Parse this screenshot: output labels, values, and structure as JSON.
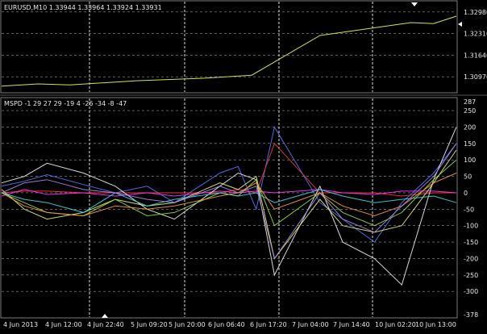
{
  "colors": {
    "background": "#000000",
    "grid": "#d8d8d8",
    "text": "#e8e8e8",
    "price_line": "#c8e84a",
    "separator": "#8a8a8a"
  },
  "upper_panel": {
    "header": "EURUSD,M10  1.33944 1.33964 1.33924 1.33931",
    "price_labels": [
      "1.32980",
      "1.32310",
      "1.31640",
      "1.30970"
    ],
    "current_price_label": "1.32980"
  },
  "lower_panel": {
    "header": "MSPD -1 29 27 29 -19 4 -26 -34 -8 -47",
    "y_labels": [
      "287",
      "250",
      "200",
      "150",
      "100",
      "50",
      "0",
      "-50",
      "-100",
      "-150",
      "-200",
      "-250",
      "-300",
      "-378"
    ]
  },
  "time_axis": {
    "labels": [
      "4 Jun 2013",
      "4 Jun 12:00",
      "4 Jun 22:40",
      "5 Jun 09:20",
      "5 Jun 20:00",
      "6 Jun 06:40",
      "6 Jun 17:20",
      "7 Jun 04:00",
      "7 Jun 14:40",
      "10 Jun 02:20",
      "10 Jun 13:00"
    ]
  },
  "chart_data": [
    {
      "type": "line",
      "title": "EURUSD,M10",
      "ylim": [
        1.305,
        1.333
      ],
      "y_ticks": [
        1.3298,
        1.3231,
        1.3164,
        1.3097
      ],
      "series": [
        {
          "name": "EURUSD",
          "color": "#c8e84a",
          "x": [
            0,
            8,
            15,
            30,
            45,
            55,
            70,
            80,
            90,
            95,
            100
          ],
          "values": [
            1.3068,
            1.3075,
            1.3072,
            1.3085,
            1.3093,
            1.3102,
            1.3225,
            1.3245,
            1.3265,
            1.3262,
            1.3285
          ]
        }
      ]
    },
    {
      "type": "line",
      "title": "MSPD",
      "ylim": [
        -378,
        287
      ],
      "y_ticks": [
        287,
        250,
        200,
        150,
        100,
        50,
        0,
        -50,
        -100,
        -150,
        -200,
        -250,
        -300,
        -378
      ],
      "series": [
        {
          "color": "#5577ff",
          "x": [
            0,
            5,
            10,
            18,
            25,
            32,
            38,
            48,
            52,
            56,
            60,
            70,
            75,
            82,
            88,
            95,
            100
          ],
          "values": [
            20,
            35,
            55,
            25,
            0,
            20,
            -30,
            60,
            80,
            -50,
            200,
            -30,
            -80,
            -150,
            -30,
            60,
            150
          ]
        },
        {
          "color": "#ff3333",
          "x": [
            0,
            5,
            10,
            18,
            25,
            32,
            38,
            48,
            52,
            56,
            60,
            70,
            75,
            82,
            88,
            95,
            100
          ],
          "values": [
            0,
            5,
            5,
            0,
            0,
            0,
            0,
            0,
            10,
            0,
            150,
            0,
            0,
            0,
            -10,
            0,
            0
          ]
        },
        {
          "color": "#ff33ff",
          "x": [
            0,
            5,
            10,
            18,
            25,
            32,
            38,
            48,
            52,
            56,
            60,
            70,
            75,
            82,
            88,
            95,
            100
          ],
          "values": [
            -10,
            10,
            -5,
            0,
            -10,
            0,
            -10,
            5,
            0,
            5,
            0,
            10,
            0,
            -5,
            5,
            5,
            0
          ]
        },
        {
          "color": "#eeeeee",
          "x": [
            0,
            5,
            10,
            18,
            25,
            32,
            38,
            48,
            52,
            56,
            60,
            70,
            75,
            82,
            88,
            95,
            100
          ],
          "values": [
            30,
            50,
            90,
            60,
            20,
            -50,
            -80,
            20,
            60,
            40,
            -250,
            20,
            -150,
            -200,
            -280,
            40,
            200
          ]
        },
        {
          "color": "#e8f070",
          "x": [
            0,
            5,
            10,
            18,
            25,
            32,
            38,
            48,
            52,
            56,
            60,
            70,
            75,
            82,
            88,
            95,
            100
          ],
          "values": [
            10,
            -50,
            -80,
            -60,
            -20,
            -40,
            -30,
            30,
            10,
            50,
            -200,
            -20,
            -100,
            -120,
            -100,
            30,
            130
          ]
        },
        {
          "color": "#99dd33",
          "x": [
            0,
            5,
            10,
            18,
            25,
            32,
            38,
            48,
            52,
            56,
            60,
            70,
            75,
            82,
            88,
            95,
            100
          ],
          "values": [
            0,
            -30,
            -60,
            -70,
            -20,
            -70,
            -60,
            0,
            -10,
            40,
            -100,
            0,
            -60,
            -100,
            -60,
            40,
            100
          ]
        },
        {
          "color": "#33ddee",
          "x": [
            0,
            5,
            10,
            18,
            25,
            32,
            38,
            48,
            52,
            56,
            60,
            70,
            75,
            82,
            88,
            95,
            100
          ],
          "values": [
            0,
            -20,
            -30,
            -60,
            0,
            -40,
            -20,
            0,
            -10,
            0,
            -30,
            10,
            -10,
            -30,
            -20,
            -10,
            -30
          ]
        },
        {
          "color": "#ff9933",
          "x": [
            0,
            5,
            10,
            18,
            25,
            32,
            38,
            48,
            52,
            56,
            60,
            70,
            75,
            82,
            88,
            95,
            100
          ],
          "values": [
            0,
            -40,
            -60,
            -70,
            -40,
            -50,
            -40,
            -10,
            0,
            30,
            -50,
            0,
            -40,
            -70,
            -40,
            30,
            60
          ]
        },
        {
          "color": "#aa88ee",
          "x": [
            0,
            5,
            10,
            18,
            25,
            32,
            38,
            48,
            52,
            56,
            60,
            70,
            75,
            82,
            88,
            95,
            100
          ],
          "values": [
            0,
            30,
            40,
            10,
            0,
            -20,
            -30,
            20,
            0,
            20,
            -200,
            0,
            -80,
            -120,
            -40,
            50,
            150
          ]
        }
      ]
    }
  ]
}
